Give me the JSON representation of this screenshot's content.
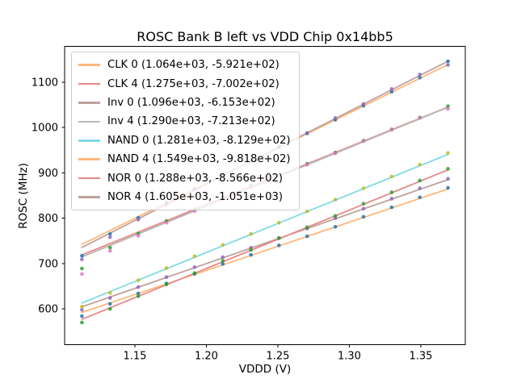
{
  "figure": {
    "background": "#ffffff",
    "axes_background": "#ffffff",
    "spine_color": "#000000"
  },
  "chart_data": {
    "type": "scatter",
    "title": "ROSC Bank B left vs VDD Chip 0x14bb5",
    "xlabel": "VDDD (V)",
    "ylabel": "ROSC (MHz)",
    "xlim": [
      1.1009,
      1.3811
    ],
    "ylim": [
      521,
      1179
    ],
    "grid": false,
    "legend_position": "upper left",
    "x_ticks": {
      "values": [
        1.15,
        1.2,
        1.25,
        1.3,
        1.35
      ],
      "labels": [
        "1.15",
        "1.20",
        "1.25",
        "1.30",
        "1.35"
      ]
    },
    "y_ticks": {
      "values": [
        600,
        700,
        800,
        900,
        1000,
        1100
      ],
      "labels": [
        "600",
        "700",
        "800",
        "900",
        "1000",
        "1100"
      ]
    },
    "x": [
      1.113,
      1.1327,
      1.1524,
      1.1721,
      1.1918,
      1.2115,
      1.2312,
      1.2508,
      1.2705,
      1.2902,
      1.3099,
      1.3296,
      1.3493,
      1.369
    ],
    "series": [
      {
        "name": "CLK-0",
        "legend_label": "CLK 0 (1.064e+03, -5.921e+02)",
        "fit": {
          "slope": 1064.0,
          "intercept": -592.1
        },
        "line_color": "#ffb87a",
        "marker_color": "#1f77b4",
        "y": [
          584,
          611,
          634,
          656,
          677,
          699,
          719,
          740,
          760,
          781,
          803,
          824,
          846,
          867
        ]
      },
      {
        "name": "CLK-4",
        "legend_label": "CLK 4 (1.275e+03, -7.002e+02)",
        "fit": {
          "slope": 1275.0,
          "intercept": -700.2
        },
        "line_color": "#e88889",
        "marker_color": "#2ca02c",
        "y": [
          689,
          735,
          766,
          794,
          820,
          846,
          872,
          896,
          920,
          945,
          971,
          996,
          1022,
          1047
        ]
      },
      {
        "name": "Inv-0",
        "legend_label": "Inv 0 (1.096e+03, -6.153e+02)",
        "fit": {
          "slope": 1096.0,
          "intercept": -615.3
        },
        "line_color": "#bfa29c",
        "marker_color": "#9467bd",
        "y": [
          598,
          624,
          648,
          670,
          692,
          714,
          735,
          756,
          777,
          800,
          821,
          843,
          866,
          887
        ]
      },
      {
        "name": "Inv-4",
        "legend_label": "Inv 4 (1.290e+03, -7.213e+02)",
        "fit": {
          "slope": 1290.0,
          "intercept": -721.3
        },
        "line_color": "#b8b8b8",
        "marker_color": "#e377c2",
        "y": [
          677,
          728,
          761,
          790,
          816,
          843,
          868,
          893,
          918,
          943,
          970,
          995,
          1021,
          1041
        ]
      },
      {
        "name": "NAND-0",
        "legend_label": "NAND 0 (1.281e+03, -8.129e+02)",
        "fit": {
          "slope": 1281.0,
          "intercept": -812.9
        },
        "line_color": "#7fdbe4",
        "marker_color": "#bcbd22",
        "y": [
          605,
          635,
          663,
          690,
          716,
          741,
          765,
          790,
          815,
          841,
          866,
          892,
          918,
          944
        ]
      },
      {
        "name": "NAND-4",
        "legend_label": "NAND 4 (1.549e+03, -9.818e+02)",
        "fit": {
          "slope": 1549.0,
          "intercept": -981.8
        },
        "line_color": "#ffb87a",
        "marker_color": "#1f77b4",
        "y": [
          717,
          765,
          801,
          834,
          865,
          897,
          927,
          957,
          987,
          1017,
          1048,
          1079,
          1110,
          1146
        ]
      },
      {
        "name": "NOR-0",
        "legend_label": "NOR 0 (1.288e+03, -8.566e+02)",
        "fit": {
          "slope": 1288.0,
          "intercept": -856.6
        },
        "line_color": "#e88889",
        "marker_color": "#2ca02c",
        "y": [
          570,
          600,
          628,
          654,
          679,
          706,
          730,
          756,
          780,
          805,
          832,
          857,
          883,
          909
        ]
      },
      {
        "name": "NOR-4",
        "legend_label": "NOR 4 (1.605e+03, -1.051e+03)",
        "fit": {
          "slope": 1605.0,
          "intercept": -1051.0
        },
        "line_color": "#bfa29c",
        "marker_color": "#9467bd",
        "y": [
          709,
          758,
          797,
          830,
          863,
          895,
          927,
          958,
          988,
          1021,
          1052,
          1085,
          1117,
          1138
        ]
      }
    ]
  }
}
